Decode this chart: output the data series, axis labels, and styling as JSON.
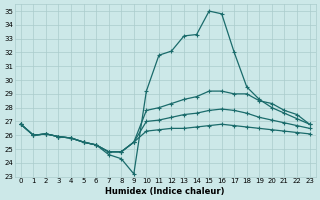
{
  "xlabel": "Humidex (Indice chaleur)",
  "ylabel": "",
  "xlim": [
    -0.5,
    23.5
  ],
  "ylim": [
    23,
    35.5
  ],
  "yticks": [
    23,
    24,
    25,
    26,
    27,
    28,
    29,
    30,
    31,
    32,
    33,
    34,
    35
  ],
  "xticks": [
    0,
    1,
    2,
    3,
    4,
    5,
    6,
    7,
    8,
    9,
    10,
    11,
    12,
    13,
    14,
    15,
    16,
    17,
    18,
    19,
    20,
    21,
    22,
    23
  ],
  "bg_color": "#cce8e8",
  "grid_color": "#aacccc",
  "line_color": "#1a6b6b",
  "series": [
    [
      26.8,
      26.0,
      26.1,
      25.9,
      25.8,
      25.5,
      25.3,
      24.6,
      24.3,
      23.2,
      29.2,
      31.8,
      32.1,
      33.2,
      33.3,
      35.0,
      34.8,
      32.0,
      29.5,
      28.6,
      28.0,
      27.6,
      27.2,
      26.8
    ],
    [
      26.8,
      26.0,
      26.1,
      25.9,
      25.8,
      25.5,
      25.3,
      24.8,
      24.8,
      25.5,
      27.8,
      28.0,
      28.3,
      28.6,
      28.8,
      29.2,
      29.2,
      29.0,
      29.0,
      28.5,
      28.3,
      27.8,
      27.5,
      26.8
    ],
    [
      26.8,
      26.0,
      26.1,
      25.9,
      25.8,
      25.5,
      25.3,
      24.8,
      24.8,
      25.5,
      27.0,
      27.1,
      27.3,
      27.5,
      27.6,
      27.8,
      27.9,
      27.8,
      27.6,
      27.3,
      27.1,
      26.9,
      26.7,
      26.5
    ],
    [
      26.8,
      26.0,
      26.1,
      25.9,
      25.8,
      25.5,
      25.3,
      24.8,
      24.8,
      25.5,
      26.3,
      26.4,
      26.5,
      26.5,
      26.6,
      26.7,
      26.8,
      26.7,
      26.6,
      26.5,
      26.4,
      26.3,
      26.2,
      26.1
    ]
  ]
}
